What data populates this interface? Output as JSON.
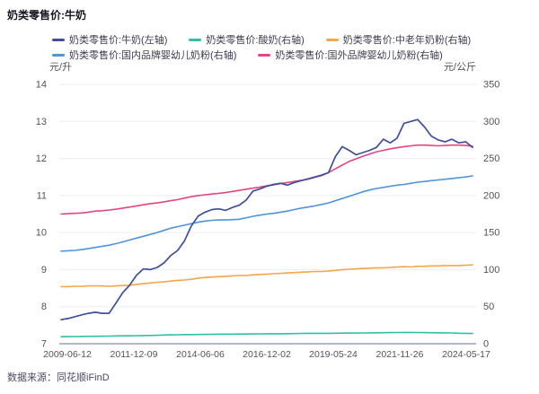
{
  "title": "奶类零售价:牛奶",
  "source": "数据来源：同花顺iFinD",
  "axes": {
    "left_unit": "元/升",
    "right_unit": "元/公斤",
    "left_range": [
      7,
      14
    ],
    "right_range": [
      0,
      350
    ],
    "left_ticks": [
      14,
      13,
      12,
      11,
      10,
      9,
      8,
      7
    ],
    "right_ticks": [
      350,
      300,
      250,
      200,
      150,
      100,
      50,
      0
    ],
    "x_tick_labels": [
      "2009-06-12",
      "2011-12-09",
      "2014-06-06",
      "2016-12-02",
      "2019-05-24",
      "2021-11-26",
      "2024-05-17"
    ]
  },
  "colors": {
    "grid": "#eceef4",
    "axis_line": "#b3b8c2",
    "tick_text": "#52525e"
  },
  "chart_data": {
    "type": "line",
    "x_start": "2009-06",
    "x_end": "2024-05",
    "x_interval": "quarterly",
    "grid": true,
    "legend_position": "top",
    "series": [
      {
        "label": "奶类零售价:牛奶(左轴)",
        "axis": "left",
        "unit": "元/升",
        "color": "#3f4f9d",
        "width": 1.7,
        "values": [
          7.65,
          7.68,
          7.73,
          7.78,
          7.82,
          7.85,
          7.82,
          7.82,
          8.1,
          8.38,
          8.58,
          8.85,
          9.02,
          9.0,
          9.06,
          9.18,
          9.38,
          9.52,
          9.78,
          10.18,
          10.45,
          10.55,
          10.62,
          10.64,
          10.6,
          10.68,
          10.74,
          10.88,
          11.12,
          11.18,
          11.25,
          11.3,
          11.33,
          11.28,
          11.35,
          11.4,
          11.45,
          11.5,
          11.55,
          11.62,
          12.05,
          12.32,
          12.22,
          12.1,
          12.16,
          12.22,
          12.3,
          12.52,
          12.42,
          12.55,
          12.95,
          13.0,
          13.05,
          12.85,
          12.6,
          12.5,
          12.45,
          12.52,
          12.42,
          12.45,
          12.3
        ]
      },
      {
        "label": "奶类零售价:酸奶(右轴)",
        "axis": "right",
        "unit": "元/公斤",
        "color": "#2fbfa7",
        "width": 1.6,
        "values": [
          9.5,
          9.6,
          9.7,
          9.8,
          10.0,
          10.1,
          10.2,
          10.3,
          10.5,
          10.6,
          10.7,
          10.9,
          11.0,
          11.2,
          11.4,
          11.7,
          12.0,
          12.1,
          12.3,
          12.4,
          12.5,
          12.6,
          12.7,
          12.9,
          13.0,
          13.0,
          13.1,
          13.1,
          13.2,
          13.3,
          13.4,
          13.4,
          13.5,
          13.6,
          13.7,
          13.9,
          14.0,
          14.0,
          14.1,
          14.1,
          14.2,
          14.3,
          14.4,
          14.4,
          14.5,
          14.6,
          14.8,
          14.9,
          15.0,
          15.1,
          15.2,
          15.2,
          15.1,
          15.0,
          14.9,
          14.8,
          14.6,
          14.5,
          14.2,
          14.0,
          13.8
        ]
      },
      {
        "label": "奶类零售价:中老年奶粉(右轴)",
        "axis": "right",
        "unit": "元/公斤",
        "color": "#f5a54a",
        "width": 1.6,
        "values": [
          77,
          77,
          77.5,
          77.5,
          78,
          78,
          78,
          77.5,
          78,
          78.5,
          79,
          80,
          81,
          82,
          83,
          83.5,
          84.5,
          85.5,
          86,
          87,
          88.5,
          89.5,
          90,
          90.5,
          91,
          91.5,
          92,
          92,
          93,
          93.5,
          94,
          94.5,
          95,
          95.5,
          96,
          96.5,
          97,
          97.5,
          97.5,
          98,
          99,
          100,
          100.5,
          101,
          101.5,
          102,
          102.5,
          102.5,
          103,
          103.5,
          104,
          103.5,
          104.5,
          104.5,
          105,
          105,
          105.5,
          105.5,
          105.5,
          106,
          106.5
        ]
      },
      {
        "label": "奶类零售价:国内品牌婴幼儿奶粉(右轴)",
        "axis": "right",
        "unit": "元/公斤",
        "color": "#4e94da",
        "width": 1.6,
        "values": [
          125,
          125.5,
          126,
          127,
          128.5,
          130,
          131.5,
          133,
          135,
          137.5,
          140,
          142.5,
          145,
          147.5,
          150,
          153,
          156,
          158,
          160,
          162,
          164,
          165.5,
          166.5,
          167,
          167,
          167.5,
          168,
          170,
          172,
          173.5,
          175,
          176,
          177.5,
          179,
          181,
          183,
          184.5,
          186,
          188,
          190,
          193,
          196,
          199,
          202,
          205,
          207.5,
          209.5,
          211,
          212.5,
          214,
          215,
          216.5,
          218,
          219,
          220,
          221,
          222,
          223,
          224,
          225,
          226.5
        ]
      },
      {
        "label": "奶类零售价:国外品牌婴幼儿奶粉(右轴)",
        "axis": "right",
        "unit": "元/公斤",
        "color": "#e5457f",
        "width": 1.6,
        "values": [
          175,
          175.5,
          176,
          176.5,
          177.5,
          179,
          179.5,
          180.5,
          181.5,
          183,
          184.5,
          186,
          187.5,
          189,
          190,
          191.5,
          193,
          194.5,
          196.5,
          198.5,
          200,
          201,
          202,
          203,
          204,
          205.5,
          207,
          208.5,
          210,
          211.5,
          213,
          214.5,
          216,
          217.5,
          219,
          220.5,
          222,
          224.5,
          227,
          231,
          236,
          241,
          246,
          249.5,
          253,
          256,
          259,
          261,
          263,
          264.5,
          266,
          267,
          268,
          268,
          267.5,
          267,
          267.5,
          268,
          268,
          267.5,
          266.5
        ]
      }
    ]
  }
}
